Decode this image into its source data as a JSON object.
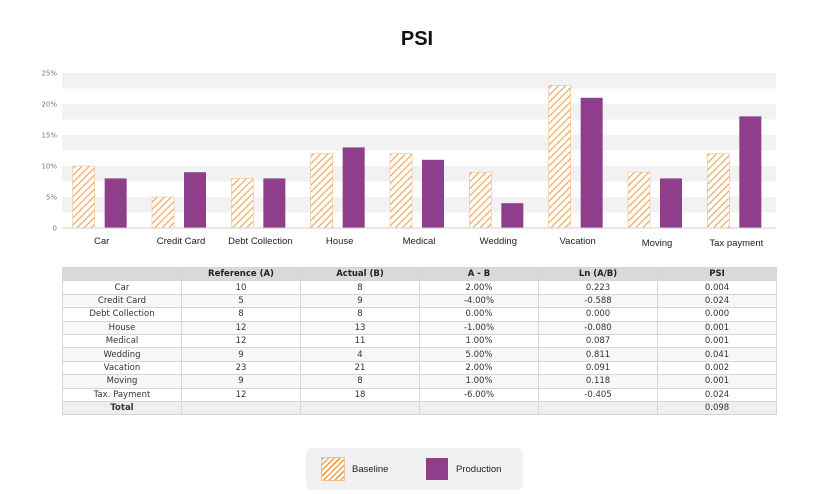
{
  "chart_data": {
    "type": "bar",
    "title": "PSI",
    "categories": [
      "Car",
      "Credit Card",
      "Debt Collection",
      "House",
      "Medical",
      "Wedding",
      "Vacation",
      "Moving",
      "Tax payment"
    ],
    "series": [
      {
        "name": "Baseline",
        "values": [
          10,
          5,
          8,
          12,
          12,
          9,
          23,
          9,
          12
        ]
      },
      {
        "name": "Production",
        "values": [
          8,
          9,
          8,
          13,
          11,
          4,
          21,
          8,
          18
        ]
      }
    ],
    "yticks": [
      "0",
      "5%",
      "10%",
      "15%",
      "20%",
      "25%"
    ],
    "ylim": [
      0,
      25
    ],
    "grid": "horizontal bands",
    "legend": "bottom"
  },
  "colors": {
    "baseline": "#f0a050",
    "production": "#8e3e8a",
    "band": "#f2f2f2"
  },
  "table": {
    "headers": [
      "",
      "Reference (A)",
      "Actual (B)",
      "A - B",
      "Ln (A/B)",
      "PSI"
    ],
    "rows": [
      [
        "Car",
        "10",
        "8",
        "2.00%",
        "0.223",
        "0.004"
      ],
      [
        "Credit Card",
        "5",
        "9",
        "-4.00%",
        "-0.588",
        "0.024"
      ],
      [
        "Debt Collection",
        "8",
        "8",
        "0.00%",
        "0.000",
        "0.000"
      ],
      [
        "House",
        "12",
        "13",
        "-1.00%",
        "-0.080",
        "0.001"
      ],
      [
        "Medical",
        "12",
        "11",
        "1.00%",
        "0.087",
        "0.001"
      ],
      [
        "Wedding",
        "9",
        "4",
        "5.00%",
        "0.811",
        "0.041"
      ],
      [
        "Vacation",
        "23",
        "21",
        "2.00%",
        "0.091",
        "0.002"
      ],
      [
        "Moving",
        "9",
        "8",
        "1.00%",
        "0.118",
        "0.001"
      ],
      [
        "Tax. Payment",
        "12",
        "18",
        "-6.00%",
        "-0.405",
        "0.024"
      ]
    ],
    "total_label": "Total",
    "total_psi": "0.098"
  },
  "legend": {
    "baseline_label": "Baseline",
    "production_label": "Production"
  }
}
